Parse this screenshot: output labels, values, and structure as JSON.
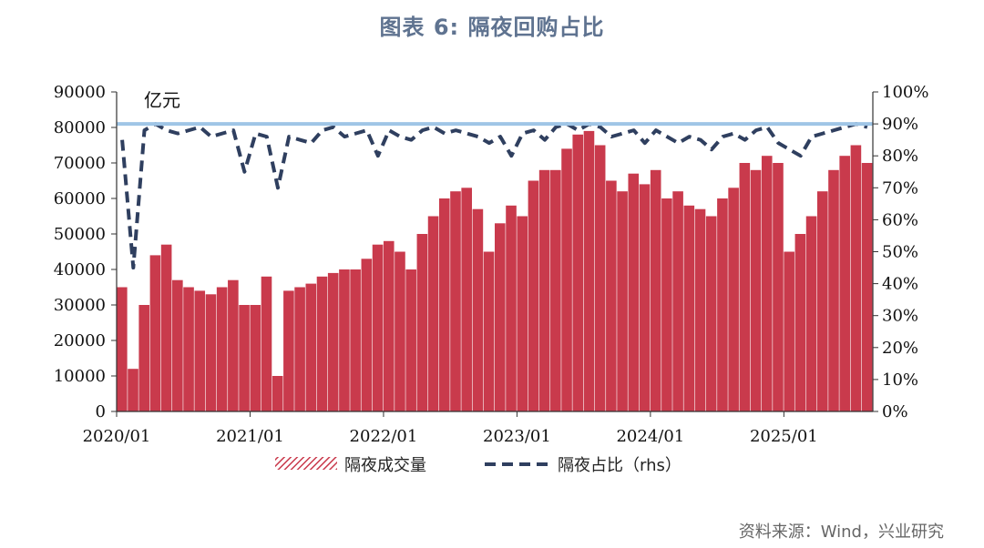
{
  "title": "图表 6: 隔夜回购占比",
  "source": "资料来源：Wind，兴业研究",
  "colors": {
    "bar": "#c93a4c",
    "line": "#2f3f5f",
    "refline": "#9fc5e6",
    "axis": "#333333"
  },
  "chart_data": {
    "type": "bar+line",
    "left_axis_unit": "亿元",
    "left_axis": {
      "min": 0,
      "max": 90000,
      "ticks": [
        "0",
        "10000",
        "20000",
        "30000",
        "40000",
        "50000",
        "60000",
        "70000",
        "80000",
        "90000"
      ]
    },
    "right_axis": {
      "min": 0,
      "max": 100,
      "ticks": [
        "0%",
        "10%",
        "20%",
        "30%",
        "40%",
        "50%",
        "60%",
        "70%",
        "80%",
        "90%",
        "100%"
      ]
    },
    "x_ticks": [
      "2020/01",
      "2021/01",
      "2022/01",
      "2023/01",
      "2024/01",
      "2025/01"
    ],
    "x_range": [
      "2020/01",
      "2025/08"
    ],
    "reference_line_pct": 90,
    "legend": [
      "隔夜成交量",
      "隔夜占比（rhs）"
    ],
    "series": [
      {
        "name": "隔夜成交量",
        "type": "bar",
        "axis": "left",
        "unit": "亿元",
        "monthly": [
          {
            "month": "2020/01",
            "value": 35000
          },
          {
            "month": "2020/02",
            "value": 12000
          },
          {
            "month": "2020/03",
            "value": 30000
          },
          {
            "month": "2020/04",
            "value": 44000
          },
          {
            "month": "2020/05",
            "value": 47000
          },
          {
            "month": "2020/06",
            "value": 37000
          },
          {
            "month": "2020/07",
            "value": 35000
          },
          {
            "month": "2020/08",
            "value": 34000
          },
          {
            "month": "2020/09",
            "value": 33000
          },
          {
            "month": "2020/10",
            "value": 35000
          },
          {
            "month": "2020/11",
            "value": 37000
          },
          {
            "month": "2020/12",
            "value": 30000
          },
          {
            "month": "2021/01",
            "value": 30000
          },
          {
            "month": "2021/02",
            "value": 38000
          },
          {
            "month": "2021/03",
            "value": 10000
          },
          {
            "month": "2021/04",
            "value": 34000
          },
          {
            "month": "2021/05",
            "value": 35000
          },
          {
            "month": "2021/06",
            "value": 36000
          },
          {
            "month": "2021/07",
            "value": 38000
          },
          {
            "month": "2021/08",
            "value": 39000
          },
          {
            "month": "2021/09",
            "value": 40000
          },
          {
            "month": "2021/10",
            "value": 40000
          },
          {
            "month": "2021/11",
            "value": 43000
          },
          {
            "month": "2021/12",
            "value": 47000
          },
          {
            "month": "2022/01",
            "value": 48000
          },
          {
            "month": "2022/02",
            "value": 45000
          },
          {
            "month": "2022/03",
            "value": 40000
          },
          {
            "month": "2022/04",
            "value": 50000
          },
          {
            "month": "2022/05",
            "value": 55000
          },
          {
            "month": "2022/06",
            "value": 60000
          },
          {
            "month": "2022/07",
            "value": 62000
          },
          {
            "month": "2022/08",
            "value": 63000
          },
          {
            "month": "2022/09",
            "value": 57000
          },
          {
            "month": "2022/10",
            "value": 45000
          },
          {
            "month": "2022/11",
            "value": 53000
          },
          {
            "month": "2022/12",
            "value": 58000
          },
          {
            "month": "2023/01",
            "value": 55000
          },
          {
            "month": "2023/02",
            "value": 65000
          },
          {
            "month": "2023/03",
            "value": 68000
          },
          {
            "month": "2023/04",
            "value": 68000
          },
          {
            "month": "2023/05",
            "value": 74000
          },
          {
            "month": "2023/06",
            "value": 78000
          },
          {
            "month": "2023/07",
            "value": 79000
          },
          {
            "month": "2023/08",
            "value": 75000
          },
          {
            "month": "2023/09",
            "value": 65000
          },
          {
            "month": "2023/10",
            "value": 62000
          },
          {
            "month": "2023/11",
            "value": 67000
          },
          {
            "month": "2023/12",
            "value": 64000
          },
          {
            "month": "2024/01",
            "value": 68000
          },
          {
            "month": "2024/02",
            "value": 60000
          },
          {
            "month": "2024/03",
            "value": 62000
          },
          {
            "month": "2024/04",
            "value": 58000
          },
          {
            "month": "2024/05",
            "value": 57000
          },
          {
            "month": "2024/06",
            "value": 55000
          },
          {
            "month": "2024/07",
            "value": 60000
          },
          {
            "month": "2024/08",
            "value": 63000
          },
          {
            "month": "2024/09",
            "value": 70000
          },
          {
            "month": "2024/10",
            "value": 68000
          },
          {
            "month": "2024/11",
            "value": 72000
          },
          {
            "month": "2024/12",
            "value": 70000
          },
          {
            "month": "2025/01",
            "value": 45000
          },
          {
            "month": "2025/02",
            "value": 50000
          },
          {
            "month": "2025/03",
            "value": 55000
          },
          {
            "month": "2025/04",
            "value": 62000
          },
          {
            "month": "2025/05",
            "value": 68000
          },
          {
            "month": "2025/06",
            "value": 72000
          },
          {
            "month": "2025/07",
            "value": 75000
          },
          {
            "month": "2025/08",
            "value": 70000
          }
        ]
      },
      {
        "name": "隔夜占比（rhs）",
        "type": "line",
        "style": "dashed",
        "axis": "right",
        "unit": "%",
        "monthly": [
          {
            "month": "2020/01",
            "value": 85
          },
          {
            "month": "2020/02",
            "value": 45
          },
          {
            "month": "2020/03",
            "value": 88
          },
          {
            "month": "2020/04",
            "value": 90
          },
          {
            "month": "2020/05",
            "value": 88
          },
          {
            "month": "2020/06",
            "value": 87
          },
          {
            "month": "2020/07",
            "value": 88
          },
          {
            "month": "2020/08",
            "value": 89
          },
          {
            "month": "2020/09",
            "value": 86
          },
          {
            "month": "2020/10",
            "value": 87
          },
          {
            "month": "2020/11",
            "value": 88
          },
          {
            "month": "2020/12",
            "value": 75
          },
          {
            "month": "2021/01",
            "value": 87
          },
          {
            "month": "2021/02",
            "value": 86
          },
          {
            "month": "2021/03",
            "value": 70
          },
          {
            "month": "2021/04",
            "value": 86
          },
          {
            "month": "2021/05",
            "value": 85
          },
          {
            "month": "2021/06",
            "value": 84
          },
          {
            "month": "2021/07",
            "value": 88
          },
          {
            "month": "2021/08",
            "value": 89
          },
          {
            "month": "2021/09",
            "value": 86
          },
          {
            "month": "2021/10",
            "value": 87
          },
          {
            "month": "2021/11",
            "value": 88
          },
          {
            "month": "2021/12",
            "value": 80
          },
          {
            "month": "2022/01",
            "value": 88
          },
          {
            "month": "2022/02",
            "value": 86
          },
          {
            "month": "2022/03",
            "value": 85
          },
          {
            "month": "2022/04",
            "value": 88
          },
          {
            "month": "2022/05",
            "value": 89
          },
          {
            "month": "2022/06",
            "value": 87
          },
          {
            "month": "2022/07",
            "value": 88
          },
          {
            "month": "2022/08",
            "value": 87
          },
          {
            "month": "2022/09",
            "value": 86
          },
          {
            "month": "2022/10",
            "value": 84
          },
          {
            "month": "2022/11",
            "value": 86
          },
          {
            "month": "2022/12",
            "value": 80
          },
          {
            "month": "2023/01",
            "value": 87
          },
          {
            "month": "2023/02",
            "value": 88
          },
          {
            "month": "2023/03",
            "value": 85
          },
          {
            "month": "2023/04",
            "value": 89
          },
          {
            "month": "2023/05",
            "value": 90
          },
          {
            "month": "2023/06",
            "value": 88
          },
          {
            "month": "2023/07",
            "value": 90
          },
          {
            "month": "2023/08",
            "value": 89
          },
          {
            "month": "2023/09",
            "value": 86
          },
          {
            "month": "2023/10",
            "value": 87
          },
          {
            "month": "2023/11",
            "value": 88
          },
          {
            "month": "2023/12",
            "value": 84
          },
          {
            "month": "2024/01",
            "value": 88
          },
          {
            "month": "2024/02",
            "value": 86
          },
          {
            "month": "2024/03",
            "value": 84
          },
          {
            "month": "2024/04",
            "value": 86
          },
          {
            "month": "2024/05",
            "value": 85
          },
          {
            "month": "2024/06",
            "value": 82
          },
          {
            "month": "2024/07",
            "value": 86
          },
          {
            "month": "2024/08",
            "value": 87
          },
          {
            "month": "2024/09",
            "value": 85
          },
          {
            "month": "2024/10",
            "value": 88
          },
          {
            "month": "2024/11",
            "value": 89
          },
          {
            "month": "2024/12",
            "value": 84
          },
          {
            "month": "2025/01",
            "value": 82
          },
          {
            "month": "2025/02",
            "value": 80
          },
          {
            "month": "2025/03",
            "value": 86
          },
          {
            "month": "2025/04",
            "value": 87
          },
          {
            "month": "2025/05",
            "value": 88
          },
          {
            "month": "2025/06",
            "value": 89
          },
          {
            "month": "2025/07",
            "value": 90
          },
          {
            "month": "2025/08",
            "value": 89
          }
        ]
      }
    ]
  }
}
